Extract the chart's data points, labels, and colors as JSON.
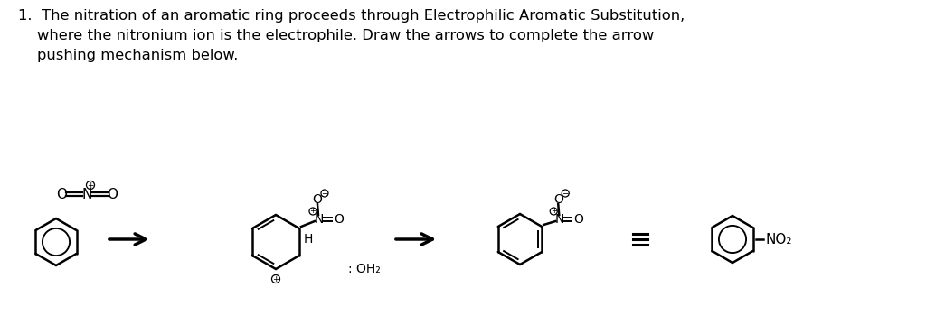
{
  "bg_color": "#ffffff",
  "text_color": "#000000",
  "line1": "1.  The nitration of an aromatic ring proceeds through Electrophilic Aromatic Substitution,",
  "line2": "    where the nitronium ion is the electrophile. Draw the arrows to complete the arrow",
  "line3": "    pushing mechanism below.",
  "fig_width": 10.24,
  "fig_height": 3.5,
  "dpi": 100
}
